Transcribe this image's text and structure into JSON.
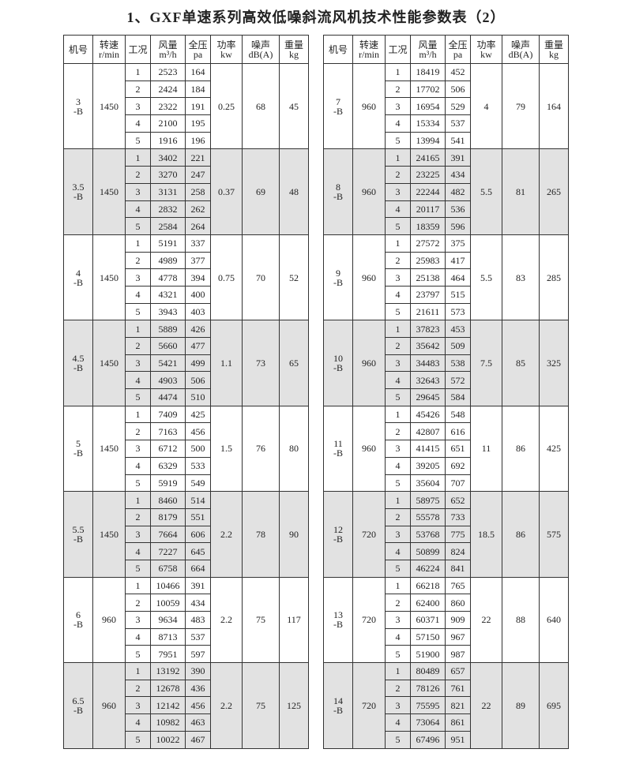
{
  "title": "1、GXF单速系列高效低噪斜流风机技术性能参数表（2）",
  "header": [
    "机号",
    "转速\nr/min",
    "工况",
    "风量\nm³/h",
    "全压\npa",
    "功率\nkw",
    "噪声\ndB(A)",
    "重量\nkg"
  ],
  "tables": [
    {
      "groups": [
        {
          "model": "3\n-B",
          "speed": 1450,
          "power": 0.25,
          "noise": 68,
          "weight": 45,
          "rows": [
            [
              1,
              2523,
              164
            ],
            [
              2,
              2424,
              184
            ],
            [
              3,
              2322,
              191
            ],
            [
              4,
              2100,
              195
            ],
            [
              5,
              1916,
              196
            ]
          ]
        },
        {
          "model": "3.5\n-B",
          "speed": 1450,
          "power": 0.37,
          "noise": 69,
          "weight": 48,
          "rows": [
            [
              1,
              3402,
              221
            ],
            [
              2,
              3270,
              247
            ],
            [
              3,
              3131,
              258
            ],
            [
              4,
              2832,
              262
            ],
            [
              5,
              2584,
              264
            ]
          ]
        },
        {
          "model": "4\n-B",
          "speed": 1450,
          "power": 0.75,
          "noise": 70,
          "weight": 52,
          "rows": [
            [
              1,
              5191,
              337
            ],
            [
              2,
              4989,
              377
            ],
            [
              3,
              4778,
              394
            ],
            [
              4,
              4321,
              400
            ],
            [
              5,
              3943,
              403
            ]
          ]
        },
        {
          "model": "4.5\n-B",
          "speed": 1450,
          "power": 1.1,
          "noise": 73,
          "weight": 65,
          "rows": [
            [
              1,
              5889,
              426
            ],
            [
              2,
              5660,
              477
            ],
            [
              3,
              5421,
              499
            ],
            [
              4,
              4903,
              506
            ],
            [
              5,
              4474,
              510
            ]
          ]
        },
        {
          "model": "5\n-B",
          "speed": 1450,
          "power": 1.5,
          "noise": 76,
          "weight": 80,
          "rows": [
            [
              1,
              7409,
              425
            ],
            [
              2,
              7163,
              456
            ],
            [
              3,
              6712,
              500
            ],
            [
              4,
              6329,
              533
            ],
            [
              5,
              5919,
              549
            ]
          ]
        },
        {
          "model": "5.5\n-B",
          "speed": 1450,
          "power": 2.2,
          "noise": 78,
          "weight": 90,
          "rows": [
            [
              1,
              8460,
              514
            ],
            [
              2,
              8179,
              551
            ],
            [
              3,
              7664,
              606
            ],
            [
              4,
              7227,
              645
            ],
            [
              5,
              6758,
              664
            ]
          ]
        },
        {
          "model": "6\n-B",
          "speed": 960,
          "power": 2.2,
          "noise": 75,
          "weight": 117,
          "rows": [
            [
              1,
              10466,
              391
            ],
            [
              2,
              10059,
              434
            ],
            [
              3,
              9634,
              483
            ],
            [
              4,
              8713,
              537
            ],
            [
              5,
              7951,
              597
            ]
          ]
        },
        {
          "model": "6.5\n-B",
          "speed": 960,
          "power": 2.2,
          "noise": 75,
          "weight": 125,
          "rows": [
            [
              1,
              13192,
              390
            ],
            [
              2,
              12678,
              436
            ],
            [
              3,
              12142,
              456
            ],
            [
              4,
              10982,
              463
            ],
            [
              5,
              10022,
              467
            ]
          ]
        }
      ]
    },
    {
      "groups": [
        {
          "model": "7\n-B",
          "speed": 960,
          "power": 4,
          "noise": 79,
          "weight": 164,
          "rows": [
            [
              1,
              18419,
              452
            ],
            [
              2,
              17702,
              506
            ],
            [
              3,
              16954,
              529
            ],
            [
              4,
              15334,
              537
            ],
            [
              5,
              13994,
              541
            ]
          ]
        },
        {
          "model": "8\n-B",
          "speed": 960,
          "power": 5.5,
          "noise": 81,
          "weight": 265,
          "rows": [
            [
              1,
              24165,
              391
            ],
            [
              2,
              23225,
              434
            ],
            [
              3,
              22244,
              482
            ],
            [
              4,
              20117,
              536
            ],
            [
              5,
              18359,
              596
            ]
          ]
        },
        {
          "model": "9\n-B",
          "speed": 960,
          "power": 5.5,
          "noise": 83,
          "weight": 285,
          "rows": [
            [
              1,
              27572,
              375
            ],
            [
              2,
              25983,
              417
            ],
            [
              3,
              25138,
              464
            ],
            [
              4,
              23797,
              515
            ],
            [
              5,
              21611,
              573
            ]
          ]
        },
        {
          "model": "10\n-B",
          "speed": 960,
          "power": 7.5,
          "noise": 85,
          "weight": 325,
          "rows": [
            [
              1,
              37823,
              453
            ],
            [
              2,
              35642,
              509
            ],
            [
              3,
              34483,
              538
            ],
            [
              4,
              32643,
              572
            ],
            [
              5,
              29645,
              584
            ]
          ]
        },
        {
          "model": "11\n-B",
          "speed": 960,
          "power": 11,
          "noise": 86,
          "weight": 425,
          "rows": [
            [
              1,
              45426,
              548
            ],
            [
              2,
              42807,
              616
            ],
            [
              3,
              41415,
              651
            ],
            [
              4,
              39205,
              692
            ],
            [
              5,
              35604,
              707
            ]
          ]
        },
        {
          "model": "12\n-B",
          "speed": 720,
          "power": 18.5,
          "noise": 86,
          "weight": 575,
          "rows": [
            [
              1,
              58975,
              652
            ],
            [
              2,
              55578,
              733
            ],
            [
              3,
              53768,
              775
            ],
            [
              4,
              50899,
              824
            ],
            [
              5,
              46224,
              841
            ]
          ]
        },
        {
          "model": "13\n-B",
          "speed": 720,
          "power": 22,
          "noise": 88,
          "weight": 640,
          "rows": [
            [
              1,
              66218,
              765
            ],
            [
              2,
              62400,
              860
            ],
            [
              3,
              60371,
              909
            ],
            [
              4,
              57150,
              967
            ],
            [
              5,
              51900,
              987
            ]
          ]
        },
        {
          "model": "14\n-B",
          "speed": 720,
          "power": 22,
          "noise": 89,
          "weight": 695,
          "rows": [
            [
              1,
              80489,
              657
            ],
            [
              2,
              78126,
              761
            ],
            [
              3,
              75595,
              821
            ],
            [
              4,
              73064,
              861
            ],
            [
              5,
              67496,
              951
            ]
          ]
        }
      ]
    }
  ]
}
